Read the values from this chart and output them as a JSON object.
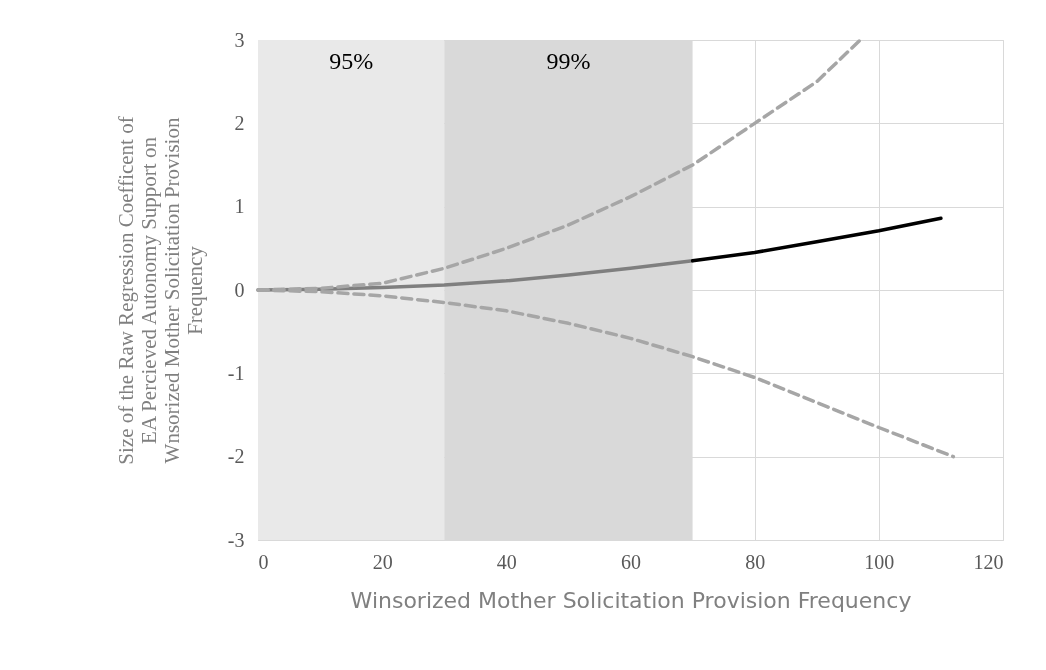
{
  "chart_data": {
    "type": "line",
    "xlabel": "Winsorized Mother Solicitation Provision Frequency",
    "ylabel": "Size of the Raw Regression Coefficent of EA Percieved Autonomy Support on Wnsorized  Mother Solicitation Provision Frequency",
    "xlim": [
      0,
      120
    ],
    "xticks": [
      0,
      20,
      40,
      60,
      80,
      100,
      120
    ],
    "ylim": [
      -3,
      3
    ],
    "yticks": [
      -3,
      -2,
      -1,
      0,
      1,
      2,
      3
    ],
    "grid": true,
    "marker": "none",
    "bands": [
      {
        "axis": "x",
        "from": 0,
        "to": 30,
        "label": "95%",
        "color": "#e9e9e9"
      },
      {
        "axis": "x",
        "from": 30,
        "to": 70,
        "label": "99%",
        "color": "#d9d9d9"
      }
    ],
    "series": [
      {
        "color": "#7f7f7f",
        "line_style": "solid",
        "x": [
          0,
          10,
          20,
          30,
          40,
          50,
          60,
          70
        ],
        "values": [
          0,
          0.01,
          0.03,
          0.06,
          0.11,
          0.18,
          0.26,
          0.35
        ]
      },
      {
        "color": "#000000",
        "line_style": "solid",
        "x": [
          70,
          80,
          90,
          100,
          110
        ],
        "values": [
          0.35,
          0.45,
          0.58,
          0.71,
          0.86
        ]
      },
      {
        "color": "#a6a6a6",
        "line_style": "dashed",
        "x": [
          0,
          10,
          20,
          30,
          40,
          50,
          60,
          70,
          80,
          90,
          97
        ],
        "values": [
          0,
          0.02,
          0.08,
          0.26,
          0.5,
          0.78,
          1.12,
          1.5,
          2.0,
          2.5,
          3.0
        ]
      },
      {
        "color": "#a6a6a6",
        "line_style": "dashed",
        "x": [
          0,
          10,
          20,
          30,
          40,
          50,
          60,
          70,
          80,
          90,
          100,
          112
        ],
        "values": [
          0,
          -0.02,
          -0.07,
          -0.15,
          -0.25,
          -0.4,
          -0.58,
          -0.8,
          -1.05,
          -1.35,
          -1.65,
          -2.0
        ]
      }
    ]
  }
}
